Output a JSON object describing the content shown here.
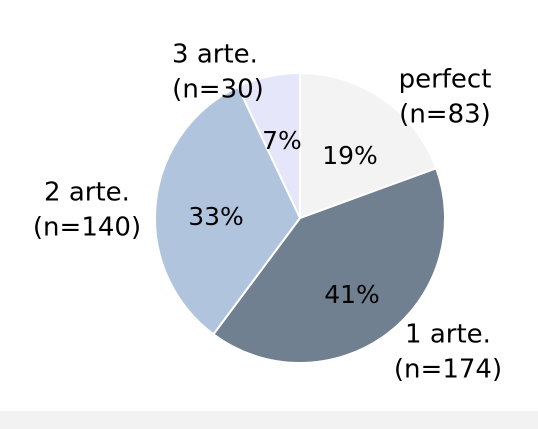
{
  "colors": {
    "background": "#ffffff",
    "bottom_band": "#f2f2f2",
    "slice_stroke": "#ffffff",
    "text": "#000000"
  },
  "chart_data": {
    "type": "pie",
    "title": "",
    "start_angle_deg": 0,
    "direction": "clockwise",
    "slices": [
      {
        "category": "perfect",
        "n_label": "(n=83)",
        "count": 83,
        "percent_label": "19%",
        "color": "#f3f3f3"
      },
      {
        "category": "1 arte.",
        "n_label": "(n=174)",
        "count": 174,
        "percent_label": "41%",
        "color": "#708090"
      },
      {
        "category": "2 arte.",
        "n_label": "(n=140)",
        "count": 140,
        "percent_label": "33%",
        "color": "#b0c4de"
      },
      {
        "category": "3 arte.",
        "n_label": "(n=30)",
        "count": 30,
        "percent_label": "7%",
        "color": "#e6e6fa"
      }
    ]
  }
}
